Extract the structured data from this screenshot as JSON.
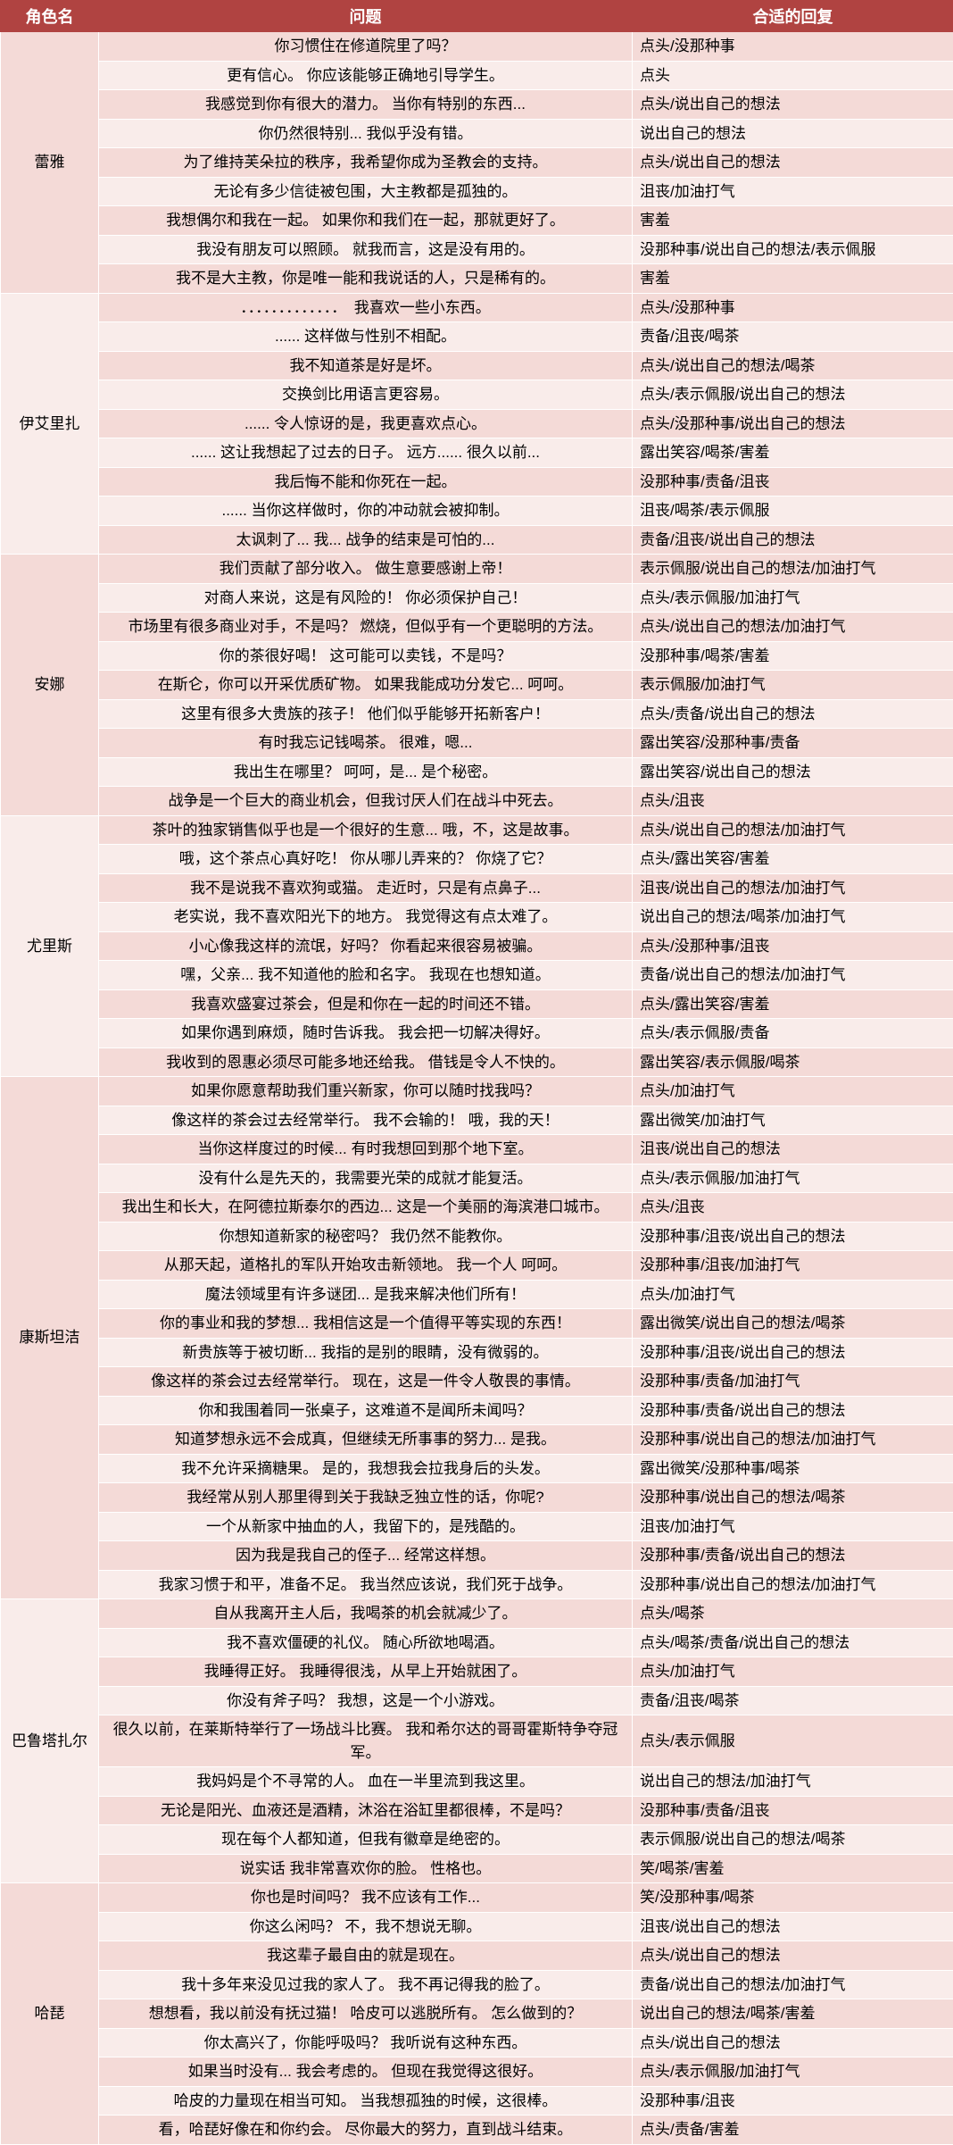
{
  "header": {
    "col1": "角色名",
    "col2": "问题",
    "col3": "合适的回复"
  },
  "groups": [
    {
      "character": "蕾雅",
      "alt": false,
      "rows": [
        {
          "q": "你习惯住在修道院里了吗？",
          "r": "点头/没那种事"
        },
        {
          "q": "更有信心。 你应该能够正确地引导学生。",
          "r": "点头"
        },
        {
          "q": "我感觉到你有很大的潜力。 当你有特别的东西...",
          "r": "点头/说出自己的想法"
        },
        {
          "q": "你仍然很特别... 我似乎没有错。",
          "r": "说出自己的想法"
        },
        {
          "q": "为了维持芙朵拉的秩序，我希望你成为圣教会的支持。",
          "r": "点头/说出自己的想法"
        },
        {
          "q": "无论有多少信徒被包围，大主教都是孤独的。",
          "r": "沮丧/加油打气"
        },
        {
          "q": "我想偶尔和我在一起。 如果你和我们在一起，那就更好了。",
          "r": "害羞"
        },
        {
          "q": "我没有朋友可以照顾。 就我而言，这是没有用的。",
          "r": "没那种事/说出自己的想法/表示佩服"
        },
        {
          "q": "我不是大主教，你是唯一能和我说话的人，只是稀有的。",
          "r": "害羞"
        }
      ]
    },
    {
      "character": "伊艾里扎",
      "alt": true,
      "rows": [
        {
          "q": "．．．．．．．．．．．．．　我喜欢一些小东西。",
          "r": "点头/没那种事"
        },
        {
          "q": "...... 这样做与性别不相配。",
          "r": "责备/沮丧/喝茶"
        },
        {
          "q": "我不知道茶是好是坏。",
          "r": "点头/说出自己的想法/喝茶"
        },
        {
          "q": "交换剑比用语言更容易。",
          "r": "点头/表示佩服/说出自己的想法"
        },
        {
          "q": "...... 令人惊讶的是，我更喜欢点心。",
          "r": "点头/没那种事/说出自己的想法"
        },
        {
          "q": "...... 这让我想起了过去的日子。 远方...... 很久以前...",
          "r": "露出笑容/喝茶/害羞"
        },
        {
          "q": "我后悔不能和你死在一起。",
          "r": "没那种事/责备/沮丧"
        },
        {
          "q": "...... 当你这样做时，你的冲动就会被抑制。",
          "r": "沮丧/喝茶/表示佩服"
        },
        {
          "q": "太讽刺了... 我... 战争的结束是可怕的...",
          "r": "责备/沮丧/说出自己的想法"
        }
      ]
    },
    {
      "character": "安娜",
      "alt": false,
      "rows": [
        {
          "q": "我们贡献了部分收入。 做生意要感谢上帝！",
          "r": "表示佩服/说出自己的想法/加油打气"
        },
        {
          "q": "对商人来说，这是有风险的！ 你必须保护自己！",
          "r": "点头/表示佩服/加油打气"
        },
        {
          "q": "市场里有很多商业对手，不是吗？ 燃烧，但似乎有一个更聪明的方法。",
          "r": "点头/说出自己的想法/加油打气"
        },
        {
          "q": "你的茶很好喝！ 这可能可以卖钱，不是吗？",
          "r": "没那种事/喝茶/害羞"
        },
        {
          "q": "在斯仑，你可以开采优质矿物。 如果我能成功分发它... 呵呵。",
          "r": "表示佩服/加油打气"
        },
        {
          "q": "这里有很多大贵族的孩子！ 他们似乎能够开拓新客户！",
          "r": "点头/责备/说出自己的想法"
        },
        {
          "q": "有时我忘记钱喝茶。 很难，嗯...",
          "r": "露出笑容/没那种事/责备"
        },
        {
          "q": "我出生在哪里？ 呵呵，是... 是个秘密。",
          "r": "露出笑容/说出自己的想法"
        },
        {
          "q": "战争是一个巨大的商业机会，但我讨厌人们在战斗中死去。",
          "r": "点头/沮丧"
        }
      ]
    },
    {
      "character": "尤里斯",
      "alt": true,
      "rows": [
        {
          "q": "茶叶的独家销售似乎也是一个很好的生意... 哦，不，这是故事。",
          "r": "点头/说出自己的想法/加油打气"
        },
        {
          "q": "哦，这个茶点心真好吃！ 你从哪儿弄来的？ 你烧了它？",
          "r": "点头/露出笑容/害羞"
        },
        {
          "q": "我不是说我不喜欢狗或猫。 走近时，只是有点鼻子...",
          "r": "沮丧/说出自己的想法/加油打气"
        },
        {
          "q": "老实说，我不喜欢阳光下的地方。 我觉得这有点太难了。",
          "r": "说出自己的想法/喝茶/加油打气"
        },
        {
          "q": "小心像我这样的流氓，好吗？ 你看起来很容易被骗。",
          "r": "点头/没那种事/沮丧"
        },
        {
          "q": "嘿，父亲... 我不知道他的脸和名字。 我现在也想知道。",
          "r": "责备/说出自己的想法/加油打气"
        },
        {
          "q": "我喜欢盛宴过茶会，但是和你在一起的时间还不错。",
          "r": "点头/露出笑容/害羞"
        },
        {
          "q": "如果你遇到麻烦，随时告诉我。 我会把一切解决得好。",
          "r": "点头/表示佩服/责备"
        },
        {
          "q": "我收到的恩惠必须尽可能多地还给我。 借钱是令人不快的。",
          "r": "露出笑容/表示佩服/喝茶"
        }
      ]
    },
    {
      "character": "康斯坦洁",
      "alt": false,
      "rows": [
        {
          "q": "如果你愿意帮助我们重兴新家，你可以随时找我吗？",
          "r": "点头/加油打气"
        },
        {
          "q": "像这样的茶会过去经常举行。 我不会输的！ 哦，我的天！",
          "r": "露出微笑/加油打气"
        },
        {
          "q": "当你这样度过的时候... 有时我想回到那个地下室。",
          "r": "沮丧/说出自己的想法"
        },
        {
          "q": "没有什么是先天的，我需要光荣的成就才能复活。",
          "r": "点头/表示佩服/加油打气"
        },
        {
          "q": "我出生和长大，在阿德拉斯泰尔的西边... 这是一个美丽的海滨港口城市。",
          "r": "点头/沮丧"
        },
        {
          "q": "你想知道新家的秘密吗？ 我仍然不能教你。",
          "r": "没那种事/沮丧/说出自己的想法"
        },
        {
          "q": "从那天起，道格扎的军队开始攻击新领地。 我一个人 呵呵。",
          "r": "没那种事/沮丧/加油打气"
        },
        {
          "q": "魔法领域里有许多谜团... 是我来解决他们所有！",
          "r": "点头/加油打气"
        },
        {
          "q": "你的事业和我的梦想... 我相信这是一个值得平等实现的东西！",
          "r": "露出微笑/说出自己的想法/喝茶"
        },
        {
          "q": "新贵族等于被切断... 我指的是别的眼睛，没有微弱的。",
          "r": "没那种事/沮丧/说出自己的想法"
        },
        {
          "q": "像这样的茶会过去经常举行。 现在，这是一件令人敬畏的事情。",
          "r": "没那种事/责备/加油打气"
        },
        {
          "q": "你和我围着同一张桌子，这难道不是闻所未闻吗？",
          "r": "没那种事/责备/说出自己的想法"
        },
        {
          "q": "知道梦想永远不会成真，但继续无所事事的努力... 是我。",
          "r": "没那种事/说出自己的想法/加油打气"
        },
        {
          "q": "我不允许采摘糖果。 是的，我想我会拉我身后的头发。",
          "r": "露出微笑/没那种事/喝茶"
        },
        {
          "q": "我经常从别人那里得到关于我缺乏独立性的话，你呢?",
          "r": "没那种事/说出自己的想法/喝茶"
        },
        {
          "q": "一个从新家中抽血的人，我留下的，是残酷的。",
          "r": "沮丧/加油打气"
        },
        {
          "q": "因为我是我自己的侄子... 经常这样想。",
          "r": "没那种事/责备/说出自己的想法"
        },
        {
          "q": "我家习惯于和平，准备不足。 我当然应该说，我们死于战争。",
          "r": "没那种事/说出自己的想法/加油打气"
        }
      ]
    },
    {
      "character": "巴鲁塔扎尔",
      "alt": true,
      "rows": [
        {
          "q": "自从我离开主人后，我喝茶的机会就减少了。",
          "r": "点头/喝茶"
        },
        {
          "q": "我不喜欢僵硬的礼仪。 随心所欲地喝酒。",
          "r": "点头/喝茶/责备/说出自己的想法"
        },
        {
          "q": "我睡得正好。 我睡得很浅，从早上开始就困了。",
          "r": "点头/加油打气"
        },
        {
          "q": "你没有斧子吗？ 我想，这是一个小游戏。",
          "r": "责备/沮丧/喝茶"
        },
        {
          "q": "很久以前，在莱斯特举行了一场战斗比赛。 我和希尔达的哥哥霍斯特争夺冠军。",
          "r": "点头/表示佩服"
        },
        {
          "q": "我妈妈是个不寻常的人。 血在一半里流到我这里。",
          "r": "说出自己的想法/加油打气"
        },
        {
          "q": "无论是阳光、血液还是酒精，沐浴在浴缸里都很棒，不是吗？",
          "r": "没那种事/责备/沮丧"
        },
        {
          "q": "现在每个人都知道，但我有徽章是绝密的。",
          "r": "表示佩服/说出自己的想法/喝茶"
        },
        {
          "q": "说实话 我非常喜欢你的脸。 性格也。",
          "r": "笑/喝茶/害羞"
        }
      ]
    },
    {
      "character": "哈琵",
      "alt": false,
      "rows": [
        {
          "q": "你也是时间吗？ 我不应该有工作...",
          "r": "笑/没那种事/喝茶"
        },
        {
          "q": "你这么闲吗？ 不，我不想说无聊。",
          "r": "沮丧/说出自己的想法"
        },
        {
          "q": "我这辈子最自由的就是现在。",
          "r": "点头/说出自己的想法"
        },
        {
          "q": "我十多年来没见过我的家人了。 我不再记得我的脸了。",
          "r": "责备/说出自己的想法/加油打气"
        },
        {
          "q": "想想看，我以前没有抚过猫！ 哈皮可以逃脱所有。 怎么做到的？",
          "r": "说出自己的想法/喝茶/害羞"
        },
        {
          "q": "你太高兴了，你能呼吸吗？ 我听说有这种东西。",
          "r": "点头/说出自己的想法"
        },
        {
          "q": "如果当时没有... 我会考虑的。 但现在我觉得这很好。",
          "r": "点头/表示佩服/加油打气"
        },
        {
          "q": "哈皮的力量现在相当可知。 当我想孤独的时候，这很棒。",
          "r": "没那种事/沮丧"
        },
        {
          "q": "看，哈琵好像在和你约会。 尽你最大的努力，直到战斗结束。",
          "r": "点头/责备/害羞"
        }
      ]
    }
  ]
}
